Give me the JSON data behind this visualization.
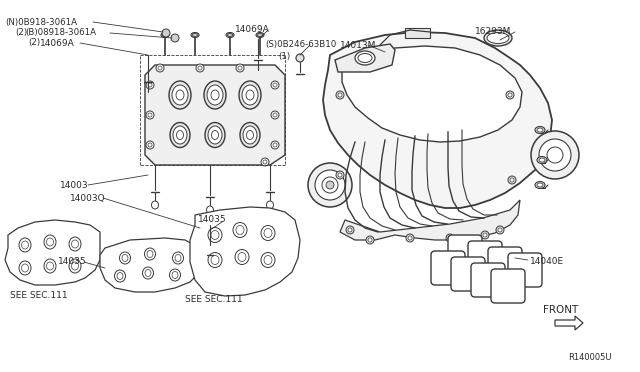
{
  "bg_color": "#ffffff",
  "line_color": "#3a3a3a",
  "text_color": "#2a2a2a",
  "ref_code": "R140005U",
  "labels": {
    "n_08918": "(N)0B918-3061A",
    "qty_2a": "(2)",
    "b_08918": "(B)08918-3061A",
    "qty_2b": "(2)",
    "l14069a_left": "14069A",
    "l14069a_right": "14069A",
    "l08246": "(S)0B246-63B10",
    "qty_1": "(1)",
    "l14013m": "14013M",
    "l16293m": "16293M",
    "l14003": "14003",
    "l14003q": "14003Q",
    "l14035a": "14035",
    "l14035b": "14035",
    "see_sec_111a": "SEE SEC.111",
    "see_sec_111b": "SEE SEC.111",
    "l14040e": "14040E",
    "front_label": "FRONT"
  },
  "figsize": [
    6.4,
    3.72
  ],
  "dpi": 100
}
